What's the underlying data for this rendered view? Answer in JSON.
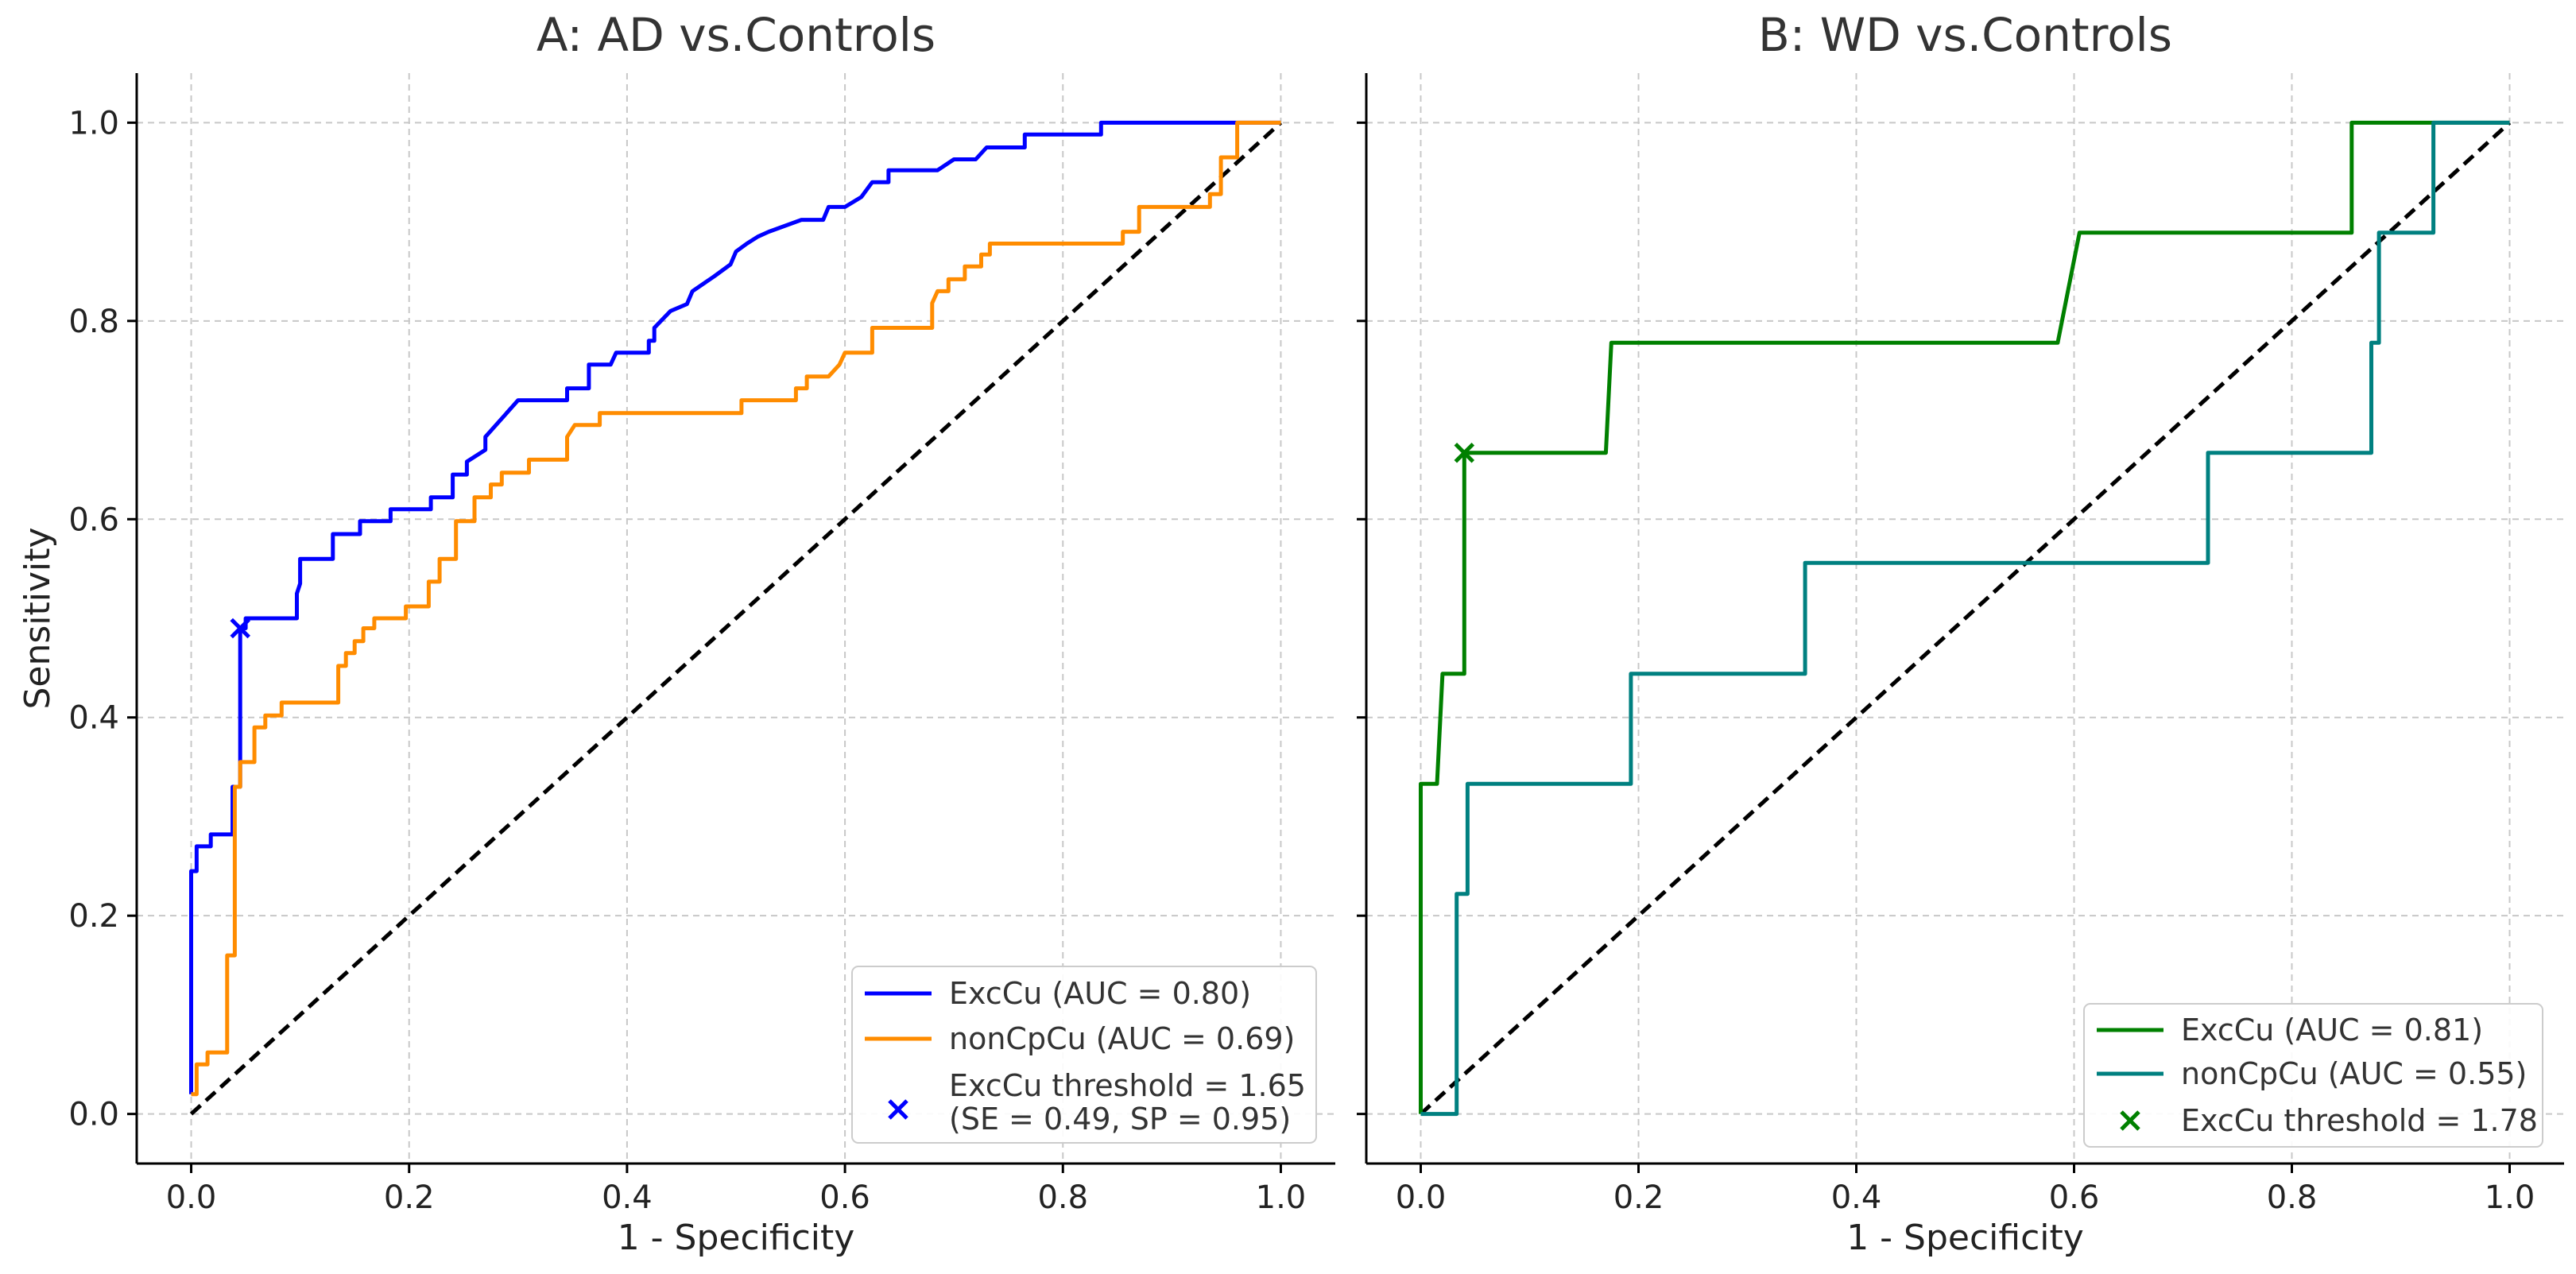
{
  "chart_data": [
    {
      "id": "A",
      "type": "line",
      "title": "A: AD vs.Controls",
      "xlabel": "1 - Specificity",
      "ylabel": "Sensitivity",
      "xlim": [
        -0.05,
        1.05
      ],
      "ylim": [
        -0.05,
        1.05
      ],
      "xticks": [
        "0.0",
        "0.2",
        "0.4",
        "0.6",
        "0.8",
        "1.0"
      ],
      "yticks": [
        "0.0",
        "0.2",
        "0.4",
        "0.6",
        "0.8",
        "1.0"
      ],
      "grid": true,
      "legend_position": "bottom-right",
      "series": [
        {
          "name": "ExcCu (AUC = 0.80)",
          "color": "#0000ff",
          "points": [
            [
              0,
              0.02
            ],
            [
              0,
              0.245
            ],
            [
              0.005,
              0.245
            ],
            [
              0.005,
              0.27
            ],
            [
              0.018,
              0.27
            ],
            [
              0.018,
              0.282
            ],
            [
              0.038,
              0.282
            ],
            [
              0.038,
              0.33
            ],
            [
              0.045,
              0.33
            ],
            [
              0.045,
              0.49
            ],
            [
              0.05,
              0.49
            ],
            [
              0.05,
              0.5
            ],
            [
              0.097,
              0.5
            ],
            [
              0.097,
              0.525
            ],
            [
              0.1,
              0.535
            ],
            [
              0.1,
              0.56
            ],
            [
              0.13,
              0.56
            ],
            [
              0.13,
              0.585
            ],
            [
              0.155,
              0.585
            ],
            [
              0.155,
              0.598
            ],
            [
              0.183,
              0.598
            ],
            [
              0.183,
              0.61
            ],
            [
              0.22,
              0.61
            ],
            [
              0.22,
              0.622
            ],
            [
              0.24,
              0.622
            ],
            [
              0.24,
              0.645
            ],
            [
              0.253,
              0.645
            ],
            [
              0.253,
              0.658
            ],
            [
              0.27,
              0.67
            ],
            [
              0.27,
              0.683
            ],
            [
              0.3,
              0.72
            ],
            [
              0.345,
              0.72
            ],
            [
              0.345,
              0.732
            ],
            [
              0.365,
              0.732
            ],
            [
              0.365,
              0.756
            ],
            [
              0.385,
              0.756
            ],
            [
              0.39,
              0.768
            ],
            [
              0.42,
              0.768
            ],
            [
              0.42,
              0.78
            ],
            [
              0.425,
              0.78
            ],
            [
              0.425,
              0.793
            ],
            [
              0.44,
              0.81
            ],
            [
              0.455,
              0.817
            ],
            [
              0.46,
              0.83
            ],
            [
              0.48,
              0.845
            ],
            [
              0.495,
              0.857
            ],
            [
              0.5,
              0.87
            ],
            [
              0.51,
              0.878
            ],
            [
              0.52,
              0.885
            ],
            [
              0.53,
              0.89
            ],
            [
              0.56,
              0.902
            ],
            [
              0.565,
              0.902
            ],
            [
              0.58,
              0.902
            ],
            [
              0.585,
              0.915
            ],
            [
              0.6,
              0.915
            ],
            [
              0.615,
              0.925
            ],
            [
              0.625,
              0.94
            ],
            [
              0.64,
              0.94
            ],
            [
              0.64,
              0.952
            ],
            [
              0.685,
              0.952
            ],
            [
              0.7,
              0.963
            ],
            [
              0.72,
              0.963
            ],
            [
              0.73,
              0.975
            ],
            [
              0.765,
              0.975
            ],
            [
              0.765,
              0.988
            ],
            [
              0.835,
              0.988
            ],
            [
              0.835,
              1.0
            ],
            [
              0.95,
              1.0
            ],
            [
              1.0,
              1.0
            ]
          ]
        },
        {
          "name": "nonCpCu (AUC = 0.69)",
          "color": "#ff8c00",
          "points": [
            [
              0,
              0.02
            ],
            [
              0.005,
              0.02
            ],
            [
              0.005,
              0.05
            ],
            [
              0.015,
              0.05
            ],
            [
              0.015,
              0.062
            ],
            [
              0.033,
              0.062
            ],
            [
              0.033,
              0.16
            ],
            [
              0.04,
              0.16
            ],
            [
              0.04,
              0.33
            ],
            [
              0.045,
              0.33
            ],
            [
              0.045,
              0.355
            ],
            [
              0.058,
              0.355
            ],
            [
              0.058,
              0.39
            ],
            [
              0.068,
              0.39
            ],
            [
              0.068,
              0.402
            ],
            [
              0.083,
              0.402
            ],
            [
              0.083,
              0.415
            ],
            [
              0.135,
              0.415
            ],
            [
              0.135,
              0.452
            ],
            [
              0.142,
              0.452
            ],
            [
              0.142,
              0.465
            ],
            [
              0.15,
              0.465
            ],
            [
              0.15,
              0.477
            ],
            [
              0.158,
              0.477
            ],
            [
              0.158,
              0.49
            ],
            [
              0.168,
              0.49
            ],
            [
              0.168,
              0.5
            ],
            [
              0.197,
              0.5
            ],
            [
              0.197,
              0.512
            ],
            [
              0.218,
              0.512
            ],
            [
              0.218,
              0.537
            ],
            [
              0.228,
              0.537
            ],
            [
              0.228,
              0.56
            ],
            [
              0.243,
              0.56
            ],
            [
              0.243,
              0.598
            ],
            [
              0.26,
              0.598
            ],
            [
              0.26,
              0.622
            ],
            [
              0.275,
              0.622
            ],
            [
              0.275,
              0.635
            ],
            [
              0.285,
              0.635
            ],
            [
              0.285,
              0.647
            ],
            [
              0.31,
              0.647
            ],
            [
              0.31,
              0.66
            ],
            [
              0.345,
              0.66
            ],
            [
              0.345,
              0.683
            ],
            [
              0.352,
              0.695
            ],
            [
              0.375,
              0.695
            ],
            [
              0.375,
              0.707
            ],
            [
              0.505,
              0.707
            ],
            [
              0.505,
              0.72
            ],
            [
              0.555,
              0.72
            ],
            [
              0.555,
              0.732
            ],
            [
              0.565,
              0.732
            ],
            [
              0.565,
              0.744
            ],
            [
              0.585,
              0.744
            ],
            [
              0.595,
              0.756
            ],
            [
              0.6,
              0.768
            ],
            [
              0.625,
              0.768
            ],
            [
              0.625,
              0.793
            ],
            [
              0.68,
              0.793
            ],
            [
              0.68,
              0.818
            ],
            [
              0.685,
              0.83
            ],
            [
              0.695,
              0.83
            ],
            [
              0.695,
              0.842
            ],
            [
              0.71,
              0.842
            ],
            [
              0.71,
              0.855
            ],
            [
              0.725,
              0.855
            ],
            [
              0.725,
              0.867
            ],
            [
              0.733,
              0.867
            ],
            [
              0.733,
              0.878
            ],
            [
              0.855,
              0.878
            ],
            [
              0.855,
              0.89
            ],
            [
              0.87,
              0.89
            ],
            [
              0.87,
              0.915
            ],
            [
              0.935,
              0.915
            ],
            [
              0.935,
              0.928
            ],
            [
              0.945,
              0.928
            ],
            [
              0.945,
              0.965
            ],
            [
              0.96,
              0.965
            ],
            [
              0.96,
              1.0
            ],
            [
              1.0,
              1.0
            ]
          ]
        }
      ],
      "threshold_marker": {
        "label_line1": "ExcCu threshold = 1.65",
        "label_line2": "(SE = 0.49, SP = 0.95)",
        "x": 0.045,
        "y": 0.49,
        "color": "#0000ff"
      },
      "reference_line": {
        "points": [
          [
            0,
            0
          ],
          [
            1,
            1
          ]
        ],
        "color": "#000000"
      }
    },
    {
      "id": "B",
      "type": "line",
      "title": "B: WD vs.Controls",
      "xlabel": "1 - Specificity",
      "ylabel": "",
      "xlim": [
        -0.05,
        1.05
      ],
      "ylim": [
        -0.05,
        1.05
      ],
      "xticks": [
        "0.0",
        "0.2",
        "0.4",
        "0.6",
        "0.8",
        "1.0"
      ],
      "yticks": [],
      "grid": true,
      "legend_position": "bottom-right",
      "series": [
        {
          "name": "ExcCu (AUC = 0.81)",
          "color": "#008000",
          "points": [
            [
              0,
              0
            ],
            [
              0,
              0.333
            ],
            [
              0.015,
              0.333
            ],
            [
              0.02,
              0.444
            ],
            [
              0.04,
              0.444
            ],
            [
              0.04,
              0.667
            ],
            [
              0.17,
              0.667
            ],
            [
              0.175,
              0.778
            ],
            [
              0.585,
              0.778
            ],
            [
              0.605,
              0.889
            ],
            [
              0.855,
              0.889
            ],
            [
              0.855,
              1.0
            ],
            [
              1.0,
              1.0
            ]
          ]
        },
        {
          "name": "nonCpCu (AUC = 0.55)",
          "color": "#008080",
          "points": [
            [
              0,
              0
            ],
            [
              0.033,
              0
            ],
            [
              0.033,
              0.222
            ],
            [
              0.043,
              0.222
            ],
            [
              0.043,
              0.333
            ],
            [
              0.193,
              0.333
            ],
            [
              0.193,
              0.444
            ],
            [
              0.353,
              0.444
            ],
            [
              0.353,
              0.556
            ],
            [
              0.723,
              0.556
            ],
            [
              0.723,
              0.667
            ],
            [
              0.873,
              0.667
            ],
            [
              0.873,
              0.778
            ],
            [
              0.88,
              0.778
            ],
            [
              0.88,
              0.889
            ],
            [
              0.93,
              0.889
            ],
            [
              0.93,
              1.0
            ],
            [
              1.0,
              1.0
            ]
          ]
        }
      ],
      "threshold_marker": {
        "label_line1": "ExcCu threshold = 1.78",
        "label_line2": "",
        "x": 0.04,
        "y": 0.667,
        "color": "#008000"
      },
      "reference_line": {
        "points": [
          [
            0,
            0
          ],
          [
            1,
            1
          ]
        ],
        "color": "#000000"
      }
    }
  ]
}
